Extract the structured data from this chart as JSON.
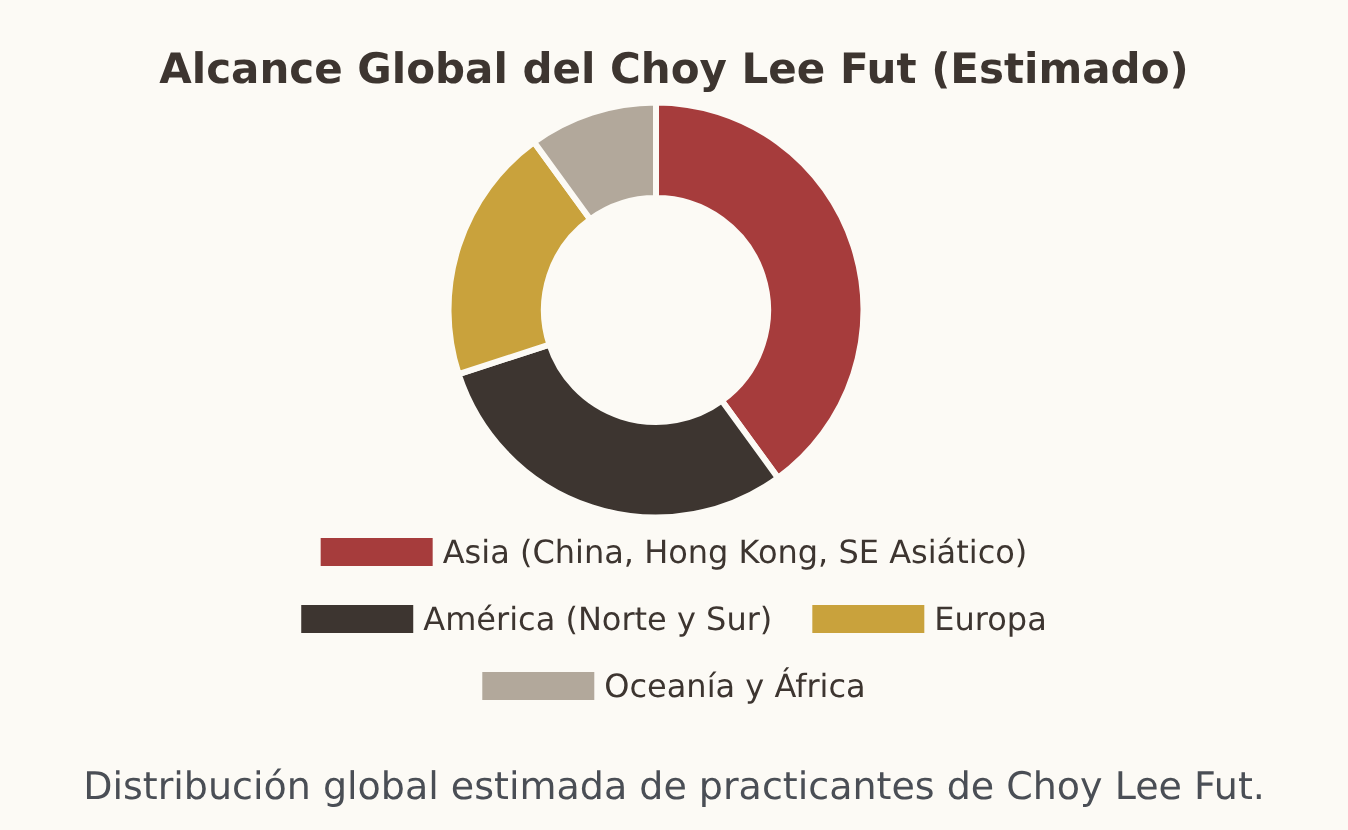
{
  "chart_data": {
    "type": "donut",
    "title": "Alcance Global del Choy Lee Fut (Estimado)",
    "categories": [
      "Asia (China, Hong Kong, SE Asiático)",
      "América (Norte y Sur)",
      "Europa",
      "Oceanía y África"
    ],
    "values": [
      40,
      30,
      20,
      10
    ],
    "colors": [
      "#a63c3c",
      "#3d3530",
      "#c9a23c",
      "#b2a89b"
    ],
    "legend": "bottom",
    "annotations": [
      "Distribución global estimada de practicantes de Choy Lee Fut."
    ]
  }
}
